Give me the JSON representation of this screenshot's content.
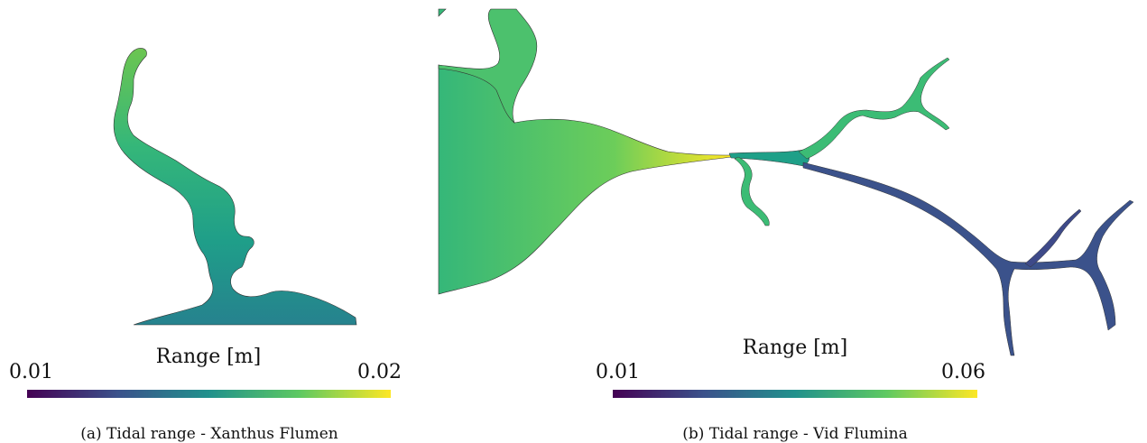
{
  "panel_a": {
    "colorbar": {
      "title": "Range [m]",
      "min_label": "0.01",
      "max_label": "0.02",
      "colormap": "viridis"
    },
    "caption": "(a) Tidal range - Xanthus Flumen"
  },
  "panel_b": {
    "colorbar": {
      "title": "Range [m]",
      "min_label": "0.01",
      "max_label": "0.06",
      "colormap": "viridis"
    },
    "caption": "(b) Tidal range - Vid Flumina"
  },
  "colors": {
    "viridis_dark": "#440154",
    "viridis_blue": "#3b528b",
    "viridis_teal": "#21918c",
    "viridis_green": "#5ec962",
    "viridis_yellow": "#fde725"
  }
}
